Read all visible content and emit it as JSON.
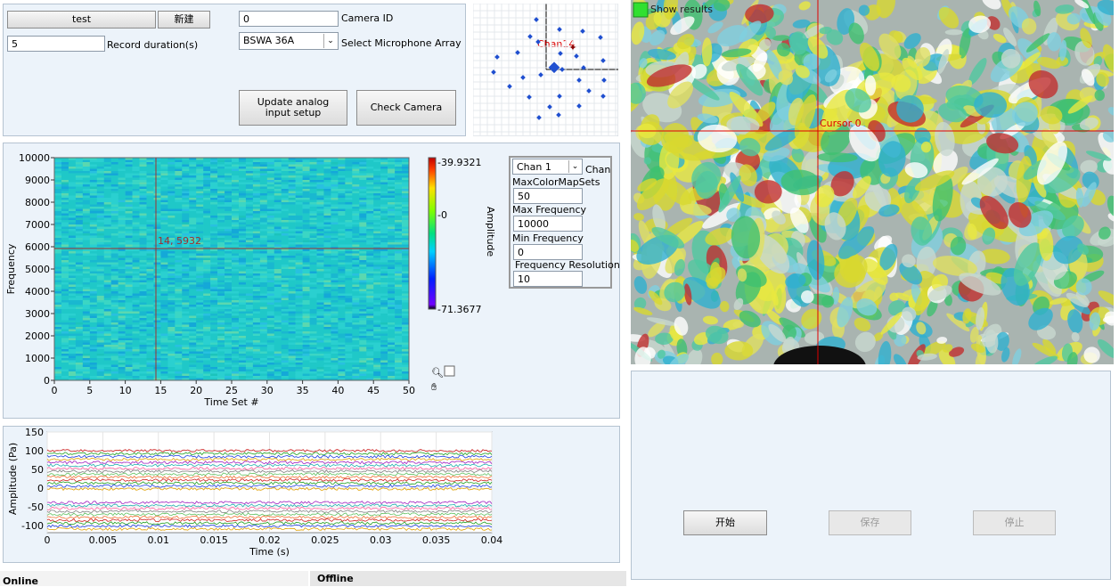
{
  "setup": {
    "name_field": "test",
    "new_button": "新建",
    "record_duration": {
      "value": "5",
      "label": "Record duration(s)"
    },
    "camera_id": {
      "value": "0",
      "label": "Camera ID"
    },
    "mic_array": {
      "value": "BSWA 36A",
      "label": "Select Microphone Array"
    },
    "update_button": "Update analog input setup",
    "check_camera_button": "Check Camera"
  },
  "array_plot": {
    "cursor_label": "Chan14"
  },
  "spectrogram": {
    "x_label": "Time Set #",
    "y_label": "Frequency",
    "xticks": [
      "0",
      "5",
      "10",
      "15",
      "20",
      "25",
      "30",
      "35",
      "40",
      "45",
      "50"
    ],
    "yticks": [
      "0",
      "1000",
      "2000",
      "3000",
      "4000",
      "5000",
      "6000",
      "7000",
      "8000",
      "9000",
      "10000"
    ],
    "cursor_label": "14, 5932",
    "colorbar_label": "Amplitude",
    "colorbar_ticks": [
      "-39.9321",
      "-0",
      "-71.3677"
    ]
  },
  "parameters": {
    "channel": "Chan 1",
    "channel_label": "Chan",
    "max_colormap_sets": {
      "label": "MaxColorMapSets",
      "value": "50"
    },
    "max_frequency": {
      "label": "Max Frequency",
      "value": "10000"
    },
    "min_frequency": {
      "label": "Min Frequency",
      "value": "0"
    },
    "frequency_resolution": {
      "label": "Frequency Resolution",
      "value": "10"
    }
  },
  "waveform": {
    "y_label": "Amplitude (Pa)",
    "x_label": "Time (s)",
    "yticks": [
      "150",
      "100",
      "50",
      "0",
      "-50",
      "-100"
    ],
    "xticks": [
      "0",
      "0.005",
      "0.01",
      "0.015",
      "0.02",
      "0.025",
      "0.03",
      "0.035",
      "0.04"
    ]
  },
  "camera": {
    "show_results": "Show results",
    "cursor_label": "Cursor 0"
  },
  "controls": {
    "start": "开始",
    "save": "保存",
    "stop": "停止"
  },
  "tabs": {
    "online": "Online",
    "offline": "Offline"
  }
}
